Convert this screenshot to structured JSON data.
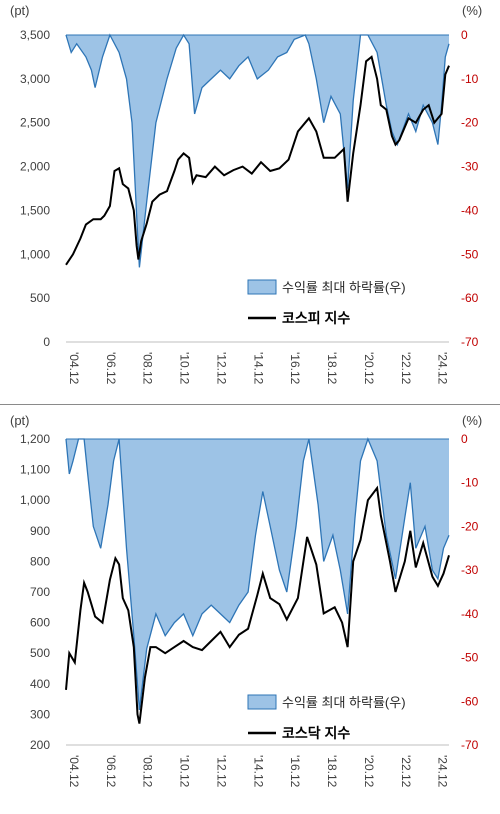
{
  "chart_data": [
    {
      "type": "line+area",
      "left_unit": "(pt)",
      "right_unit": "(%)",
      "ylim_left": [
        0,
        3500
      ],
      "yticks_left": [
        "0",
        "500",
        "1,000",
        "1,500",
        "2,000",
        "2,500",
        "3,000",
        "3,500"
      ],
      "ylim_right": [
        -70,
        0
      ],
      "yticks_right": [
        "-70",
        "-60",
        "-50",
        "-40",
        "-30",
        "-20",
        "-10",
        "0"
      ],
      "xticks": [
        "'04.12",
        "'06.12",
        "'08.12",
        "'10.12",
        "'12.12",
        "'14.12",
        "'16.12",
        "'18.12",
        "'20.12",
        "'22.12",
        "'24.12"
      ],
      "x_range": [
        2004.92,
        2025.7
      ],
      "legend": [
        {
          "label": "수익률 최대 하락률(우)",
          "kind": "area"
        },
        {
          "label": "코스피 지수",
          "kind": "line"
        }
      ],
      "colors": {
        "area_fill": "#9dc3e6",
        "area_stroke": "#2e75b6",
        "line": "#000000",
        "right_axis_text": "#c00000"
      },
      "series": [
        {
          "name": "코스피 지수",
          "axis": "left",
          "x": [
            2004.92,
            2005.3,
            2005.7,
            2006.0,
            2006.4,
            2006.8,
            2007.0,
            2007.3,
            2007.55,
            2007.8,
            2008.0,
            2008.3,
            2008.6,
            2008.75,
            2008.85,
            2009.0,
            2009.3,
            2009.6,
            2010.0,
            2010.4,
            2010.8,
            2011.0,
            2011.3,
            2011.6,
            2011.8,
            2012.0,
            2012.5,
            2013.0,
            2013.5,
            2014.0,
            2014.5,
            2015.0,
            2015.5,
            2016.0,
            2016.5,
            2017.0,
            2017.5,
            2017.9,
            2018.1,
            2018.5,
            2018.9,
            2019.5,
            2020.0,
            2020.2,
            2020.5,
            2020.9,
            2021.2,
            2021.5,
            2021.8,
            2022.0,
            2022.3,
            2022.6,
            2022.8,
            2023.0,
            2023.5,
            2023.9,
            2024.3,
            2024.6,
            2024.9,
            2025.1,
            2025.3,
            2025.5,
            2025.7
          ],
          "y": [
            880,
            1000,
            1180,
            1340,
            1400,
            1400,
            1440,
            1550,
            1950,
            1980,
            1800,
            1750,
            1500,
            1100,
            940,
            1150,
            1350,
            1600,
            1680,
            1720,
            1950,
            2080,
            2150,
            2100,
            1820,
            1900,
            1880,
            2000,
            1900,
            1960,
            2000,
            1920,
            2050,
            1950,
            1980,
            2080,
            2400,
            2500,
            2550,
            2400,
            2100,
            2100,
            2200,
            1600,
            2150,
            2700,
            3200,
            3250,
            3000,
            2700,
            2650,
            2350,
            2250,
            2300,
            2550,
            2500,
            2650,
            2700,
            2500,
            2550,
            2600,
            3050,
            3150
          ]
        },
        {
          "name": "수익률 최대 하락률(우)",
          "axis": "right",
          "x": [
            2004.92,
            2005.2,
            2005.5,
            2006.0,
            2006.3,
            2006.5,
            2006.9,
            2007.3,
            2007.8,
            2008.2,
            2008.5,
            2008.8,
            2008.9,
            2009.3,
            2009.8,
            2010.4,
            2010.9,
            2011.3,
            2011.6,
            2011.9,
            2012.3,
            2012.8,
            2013.3,
            2013.8,
            2014.3,
            2014.8,
            2015.3,
            2015.9,
            2016.4,
            2016.9,
            2017.3,
            2017.9,
            2018.1,
            2018.5,
            2018.9,
            2019.3,
            2019.8,
            2020.2,
            2020.5,
            2020.9,
            2021.3,
            2021.8,
            2022.3,
            2022.6,
            2022.9,
            2023.5,
            2023.9,
            2024.3,
            2024.8,
            2025.1,
            2025.3,
            2025.5,
            2025.7
          ],
          "y": [
            0,
            -4,
            -2,
            -5,
            -8,
            -12,
            -5,
            0,
            -4,
            -10,
            -20,
            -45,
            -53,
            -38,
            -20,
            -10,
            -3,
            0,
            -2,
            -18,
            -12,
            -10,
            -8,
            -10,
            -7,
            -5,
            -10,
            -8,
            -5,
            -4,
            -1,
            0,
            -2,
            -10,
            -20,
            -14,
            -18,
            -35,
            -15,
            0,
            0,
            -4,
            -16,
            -22,
            -25,
            -18,
            -22,
            -16,
            -20,
            -25,
            -16,
            -5,
            -2
          ]
        }
      ]
    },
    {
      "type": "line+area",
      "left_unit": "(pt)",
      "right_unit": "(%)",
      "ylim_left": [
        200,
        1200
      ],
      "yticks_left": [
        "200",
        "300",
        "400",
        "500",
        "600",
        "700",
        "800",
        "900",
        "1,000",
        "1,100",
        "1,200"
      ],
      "ylim_right": [
        -70,
        0
      ],
      "yticks_right": [
        "-70",
        "-60",
        "-50",
        "-40",
        "-30",
        "-20",
        "-10",
        "0"
      ],
      "xticks": [
        "'04.12",
        "'06.12",
        "'08.12",
        "'10.12",
        "'12.12",
        "'14.12",
        "'16.12",
        "'18.12",
        "'20.12",
        "'22.12",
        "'24.12"
      ],
      "x_range": [
        2004.92,
        2025.7
      ],
      "legend": [
        {
          "label": "수익률 최대 하락률(우)",
          "kind": "area"
        },
        {
          "label": "코스닥 지수",
          "kind": "line"
        }
      ],
      "colors": {
        "area_fill": "#9dc3e6",
        "area_stroke": "#2e75b6",
        "line": "#000000",
        "right_axis_text": "#c00000"
      },
      "series": [
        {
          "name": "코스닥 지수",
          "axis": "left",
          "x": [
            2004.92,
            2005.1,
            2005.4,
            2005.7,
            2005.9,
            2006.1,
            2006.5,
            2006.9,
            2007.3,
            2007.6,
            2007.8,
            2008.0,
            2008.3,
            2008.6,
            2008.8,
            2008.9,
            2009.2,
            2009.5,
            2009.8,
            2010.3,
            2010.8,
            2011.3,
            2011.8,
            2012.3,
            2012.8,
            2013.3,
            2013.8,
            2014.3,
            2014.8,
            2015.3,
            2015.6,
            2016.0,
            2016.5,
            2016.9,
            2017.5,
            2018.0,
            2018.5,
            2018.9,
            2019.5,
            2019.9,
            2020.2,
            2020.5,
            2020.9,
            2021.3,
            2021.8,
            2022.0,
            2022.5,
            2022.8,
            2023.3,
            2023.6,
            2023.9,
            2024.3,
            2024.8,
            2025.1,
            2025.4,
            2025.7
          ],
          "y": [
            380,
            500,
            470,
            640,
            730,
            700,
            620,
            600,
            740,
            810,
            790,
            680,
            640,
            520,
            300,
            270,
            420,
            520,
            520,
            500,
            520,
            540,
            520,
            510,
            540,
            570,
            520,
            560,
            580,
            690,
            760,
            680,
            660,
            610,
            680,
            880,
            790,
            630,
            650,
            600,
            520,
            800,
            870,
            1000,
            1040,
            950,
            800,
            700,
            800,
            900,
            780,
            860,
            750,
            720,
            760,
            820
          ]
        },
        {
          "name": "수익률 최대 하락률(우)",
          "axis": "right",
          "x": [
            2004.92,
            2005.1,
            2005.3,
            2005.6,
            2005.9,
            2006.1,
            2006.4,
            2006.8,
            2007.2,
            2007.5,
            2007.8,
            2008.2,
            2008.6,
            2008.9,
            2009.3,
            2009.8,
            2010.3,
            2010.8,
            2011.3,
            2011.8,
            2012.3,
            2012.8,
            2013.3,
            2013.8,
            2014.3,
            2014.8,
            2015.2,
            2015.6,
            2016.0,
            2016.5,
            2016.9,
            2017.4,
            2017.8,
            2018.1,
            2018.6,
            2018.9,
            2019.4,
            2019.8,
            2020.2,
            2020.6,
            2020.9,
            2021.3,
            2021.8,
            2022.3,
            2022.8,
            2023.3,
            2023.6,
            2023.9,
            2024.4,
            2024.8,
            2025.1,
            2025.4,
            2025.7
          ],
          "y": [
            0,
            -8,
            -5,
            0,
            0,
            -8,
            -20,
            -25,
            -15,
            -5,
            0,
            -25,
            -45,
            -62,
            -48,
            -40,
            -45,
            -42,
            -40,
            -45,
            -40,
            -38,
            -40,
            -42,
            -38,
            -35,
            -22,
            -12,
            -20,
            -30,
            -35,
            -20,
            -5,
            0,
            -15,
            -28,
            -22,
            -30,
            -40,
            -18,
            -5,
            0,
            -5,
            -22,
            -32,
            -18,
            -10,
            -25,
            -20,
            -30,
            -32,
            -25,
            -22
          ]
        }
      ]
    }
  ]
}
